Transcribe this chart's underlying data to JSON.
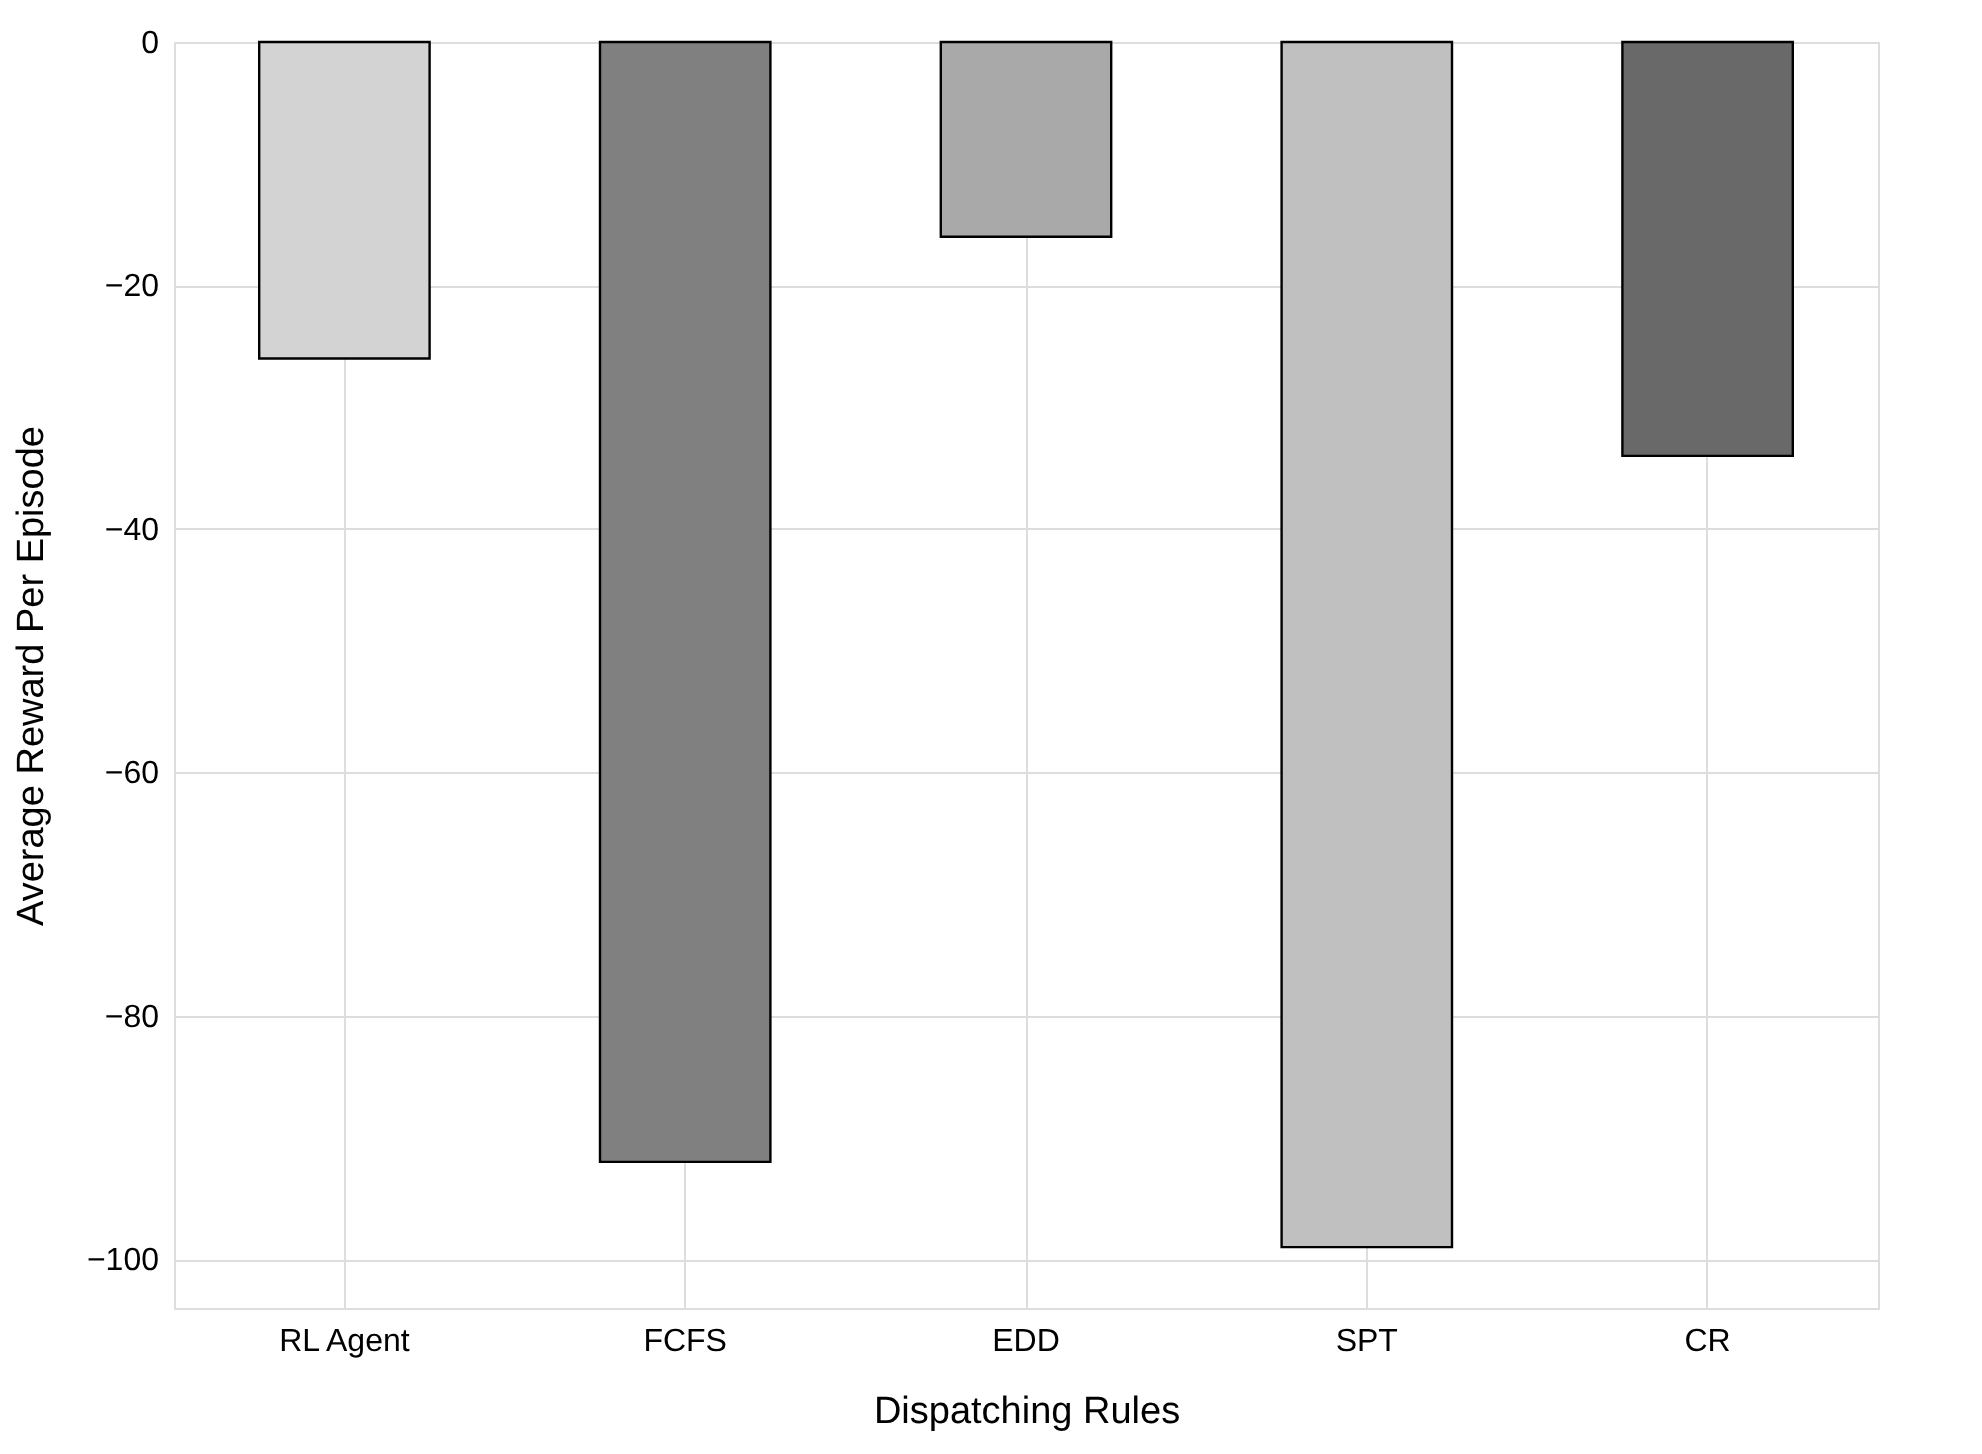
{
  "chart_data": {
    "type": "bar",
    "xlabel": "Dispatching Rules",
    "ylabel": "Average Reward Per Episode",
    "categories": [
      "RL Agent",
      "FCFS",
      "EDD",
      "SPT",
      "CR"
    ],
    "values": [
      -26,
      -92,
      -16,
      -99,
      -34
    ],
    "colors": [
      "#d3d3d3",
      "#808080",
      "#a9a9a9",
      "#c0c0c0",
      "#696969"
    ],
    "ylim": [
      -104,
      0
    ],
    "yticks": [
      -100,
      -80,
      -60,
      -40,
      -20,
      0
    ],
    "grid": true
  }
}
